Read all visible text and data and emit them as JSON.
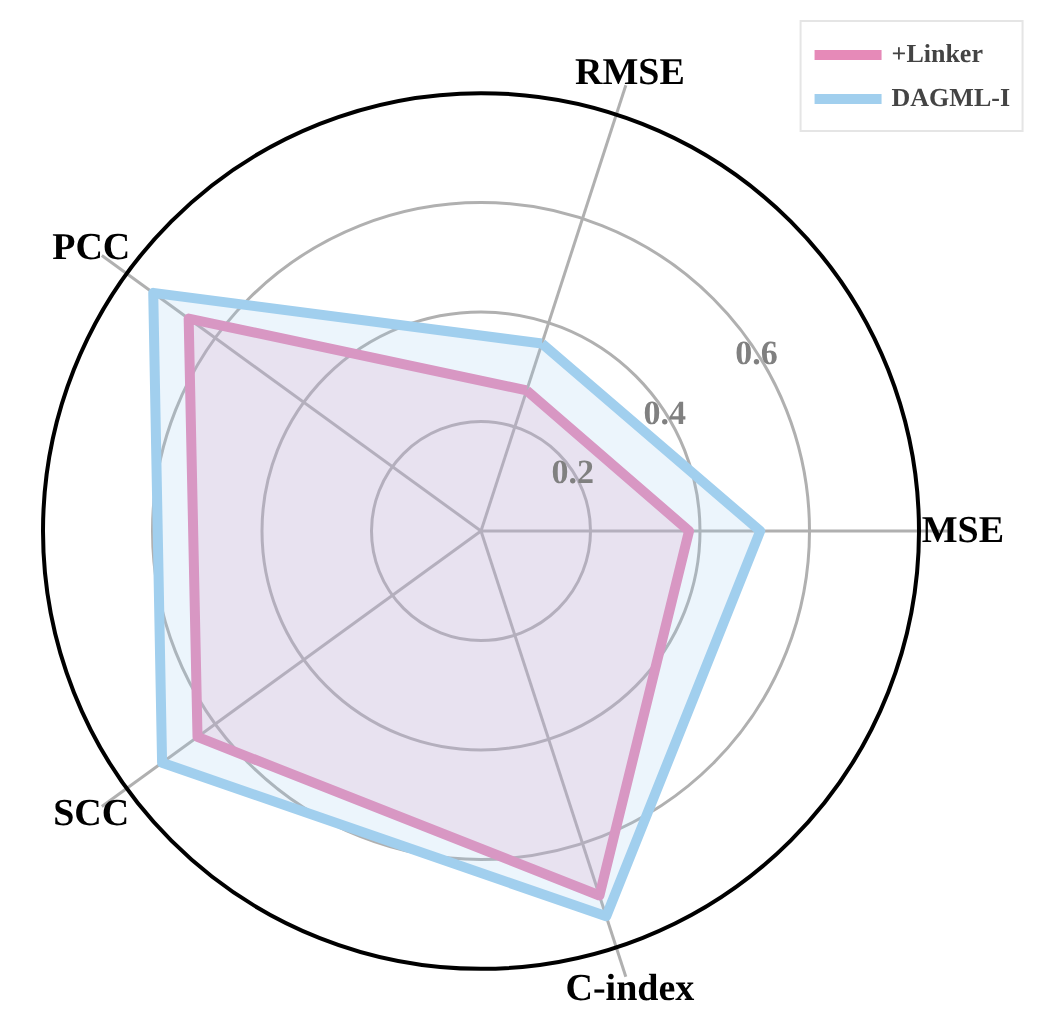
{
  "chart_data": {
    "type": "radar",
    "categories": [
      "RMSE",
      "MSE",
      "C-index",
      "SCC",
      "PCC"
    ],
    "series": [
      {
        "name": "+Linker",
        "color": "#e68ab8",
        "values": [
          0.27,
          0.38,
          0.7,
          0.64,
          0.66
        ]
      },
      {
        "name": "DAGML-I",
        "color": "#a1cfee",
        "values": [
          0.36,
          0.51,
          0.74,
          0.72,
          0.74
        ]
      }
    ],
    "ylim": [
      0,
      0.8
    ],
    "yticks": [
      0.2,
      0.4,
      0.6
    ],
    "grid": true,
    "legend": "top right"
  }
}
